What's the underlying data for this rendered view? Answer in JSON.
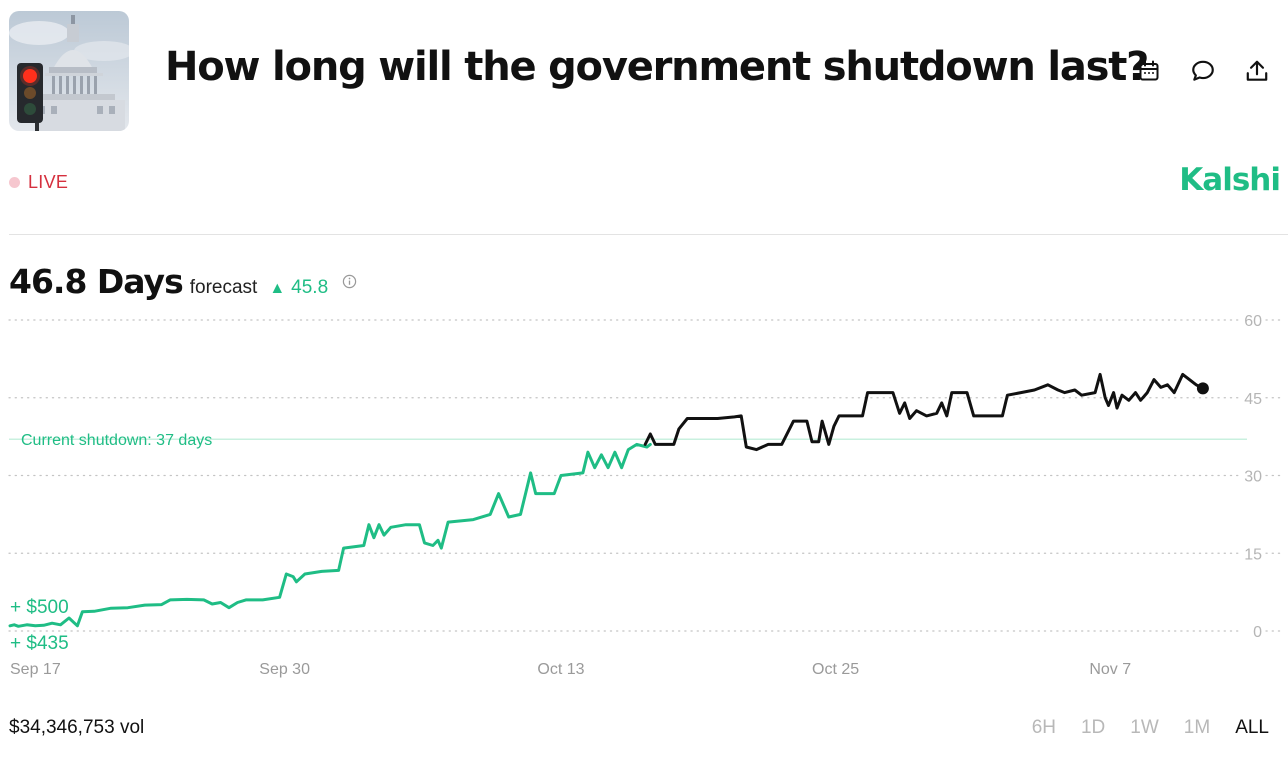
{
  "header": {
    "title": "How long will the government shutdown last?",
    "thumbnail_icon": "capitol-traffic-light-image"
  },
  "actions": [
    {
      "icon": "calendar-icon"
    },
    {
      "icon": "comment-icon"
    },
    {
      "icon": "share-icon"
    }
  ],
  "status": {
    "live_label": "LIVE",
    "live_color": "#d5303e"
  },
  "brand": {
    "name": "Kalshi",
    "color": "#1fbd85"
  },
  "forecast": {
    "value": "46.8 Days",
    "label": "forecast",
    "change": "45.8",
    "change_icon": "triangle-up-icon"
  },
  "chart_data": {
    "type": "line",
    "x_ticks": [
      "Sep 17",
      "Sep 30",
      "Oct 13",
      "Oct 25",
      "Nov 7"
    ],
    "y_ticks": [
      0,
      15,
      30,
      45,
      60
    ],
    "ylim": [
      0,
      60
    ],
    "grid": "horizontal dotted",
    "reference_line": {
      "label": "Current shutdown: 37 days",
      "value": 37
    },
    "trade_labels": [
      "+ $500",
      "+ $435"
    ],
    "colors": {
      "past": "#1fbd85",
      "recent": "#111111",
      "reference": "#c9f0df"
    },
    "series": [
      {
        "values": [
          [
            0,
            1
          ],
          [
            0.25,
            1.2
          ],
          [
            0.5,
            0.9
          ],
          [
            1,
            1.2
          ],
          [
            1.5,
            1.0
          ],
          [
            2,
            1.1
          ],
          [
            2.5,
            1.5
          ],
          [
            3,
            1.2
          ],
          [
            3.5,
            2.5
          ],
          [
            4,
            1.0
          ],
          [
            4.3,
            3.7
          ],
          [
            5,
            3.8
          ],
          [
            6,
            4.4
          ],
          [
            7,
            4.5
          ],
          [
            8,
            5.0
          ],
          [
            9,
            5.1
          ],
          [
            9.5,
            6.0
          ],
          [
            10.5,
            6.1
          ],
          [
            11.5,
            6.0
          ],
          [
            12,
            5.2
          ],
          [
            12.5,
            5.5
          ],
          [
            13,
            4.5
          ],
          [
            13.5,
            5.5
          ],
          [
            14,
            6.0
          ],
          [
            15,
            6.0
          ],
          [
            16,
            6.5
          ],
          [
            16.4,
            11.0
          ],
          [
            16.8,
            10.5
          ],
          [
            17,
            9.5
          ],
          [
            17.5,
            11.0
          ],
          [
            18.5,
            11.5
          ],
          [
            19.5,
            11.7
          ],
          [
            19.8,
            16.0
          ],
          [
            21,
            16.5
          ],
          [
            21.3,
            20.5
          ],
          [
            21.6,
            18.0
          ],
          [
            21.9,
            20.5
          ],
          [
            22.2,
            18.5
          ],
          [
            22.6,
            20.0
          ],
          [
            23.5,
            20.5
          ],
          [
            24.3,
            20.5
          ],
          [
            24.6,
            17.0
          ],
          [
            25.1,
            16.5
          ],
          [
            25.4,
            17.5
          ],
          [
            25.6,
            16.0
          ],
          [
            26,
            21.0
          ],
          [
            27.5,
            21.5
          ],
          [
            28.5,
            22.5
          ],
          [
            29,
            26.5
          ],
          [
            29.6,
            22.0
          ],
          [
            30.3,
            22.5
          ],
          [
            30.9,
            30.5
          ],
          [
            31.2,
            26.5
          ],
          [
            32.3,
            26.5
          ],
          [
            32.7,
            30.0
          ],
          [
            34,
            30.5
          ],
          [
            34.3,
            34.5
          ],
          [
            34.7,
            31.5
          ],
          [
            35.1,
            34.0
          ],
          [
            35.5,
            31.5
          ],
          [
            35.9,
            34.5
          ],
          [
            36.3,
            31.5
          ],
          [
            36.7,
            35.0
          ],
          [
            37.2,
            36.0
          ],
          [
            37.8,
            35.5
          ],
          [
            38,
            36.0
          ]
        ]
      },
      {
        "values": [
          [
            37.7,
            36.0
          ],
          [
            38,
            38.0
          ],
          [
            38.3,
            36.0
          ],
          [
            39.4,
            36.0
          ],
          [
            39.7,
            39.0
          ],
          [
            40.2,
            41.0
          ],
          [
            42,
            41.0
          ],
          [
            43,
            41.3
          ],
          [
            43.4,
            41.5
          ],
          [
            43.7,
            35.5
          ],
          [
            44.3,
            35.0
          ],
          [
            45,
            36.0
          ],
          [
            45.8,
            36.0
          ],
          [
            46.5,
            40.5
          ],
          [
            47.3,
            40.5
          ],
          [
            47.6,
            36.5
          ],
          [
            48,
            36.5
          ],
          [
            48.2,
            40.5
          ],
          [
            48.6,
            36.0
          ],
          [
            48.9,
            39.5
          ],
          [
            49.2,
            41.5
          ],
          [
            50.6,
            41.5
          ],
          [
            50.9,
            46.0
          ],
          [
            52.4,
            46.0
          ],
          [
            52.8,
            42.0
          ],
          [
            53.1,
            44.0
          ],
          [
            53.4,
            41.0
          ],
          [
            53.8,
            42.5
          ],
          [
            54.4,
            41.5
          ],
          [
            55,
            42.0
          ],
          [
            55.3,
            44.0
          ],
          [
            55.6,
            41.5
          ],
          [
            55.9,
            46.0
          ],
          [
            56.8,
            46.0
          ],
          [
            57.2,
            41.5
          ],
          [
            58.9,
            41.5
          ],
          [
            59.2,
            45.5
          ],
          [
            60,
            46.0
          ],
          [
            60.8,
            46.5
          ],
          [
            61.6,
            47.5
          ],
          [
            62.2,
            46.5
          ],
          [
            62.6,
            46.0
          ],
          [
            63.2,
            46.5
          ],
          [
            63.6,
            45.5
          ],
          [
            64.4,
            46.0
          ],
          [
            64.7,
            49.5
          ],
          [
            65,
            45.0
          ],
          [
            65.2,
            43.5
          ],
          [
            65.5,
            46.0
          ],
          [
            65.7,
            43.0
          ],
          [
            66,
            45.5
          ],
          [
            66.4,
            44.5
          ],
          [
            66.8,
            46.0
          ],
          [
            67.1,
            44.5
          ],
          [
            67.5,
            46.0
          ],
          [
            67.9,
            48.5
          ],
          [
            68.3,
            47.0
          ],
          [
            68.7,
            47.5
          ],
          [
            69.1,
            46.0
          ],
          [
            69.6,
            49.5
          ],
          [
            70,
            48.5
          ],
          [
            70.4,
            47.5
          ],
          [
            70.8,
            46.8
          ]
        ]
      }
    ]
  },
  "footer": {
    "volume": "$34,346,753 vol",
    "ranges": [
      {
        "label": "6H",
        "active": false
      },
      {
        "label": "1D",
        "active": false
      },
      {
        "label": "1W",
        "active": false
      },
      {
        "label": "1M",
        "active": false
      },
      {
        "label": "ALL",
        "active": true
      }
    ]
  }
}
